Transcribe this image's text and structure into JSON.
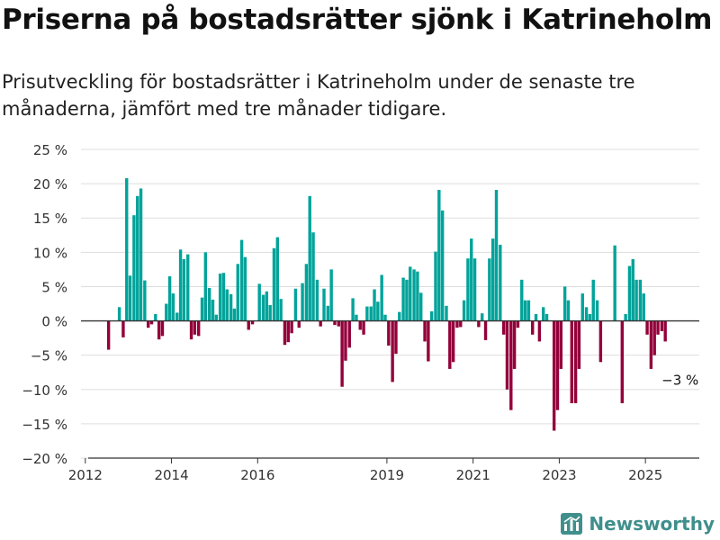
{
  "header": {
    "title": "Priserna på bostadsrätter sjönk i Katrineholm",
    "subtitle": "Prisutveckling för bostadsrätter i Katrineholm under de senaste tre månaderna, jämfört med tre månader tidigare."
  },
  "brand": {
    "name": "Newsworthy",
    "icon": "newsworthy-logo-icon"
  },
  "colors": {
    "positive": "#00a39a",
    "negative": "#93003a",
    "grid": "#dddddd",
    "axis": "#333333"
  },
  "chart_data": {
    "type": "bar",
    "title": "",
    "xlabel": "",
    "ylabel": "",
    "ylim": [
      -20,
      25
    ],
    "y_ticks": [
      25,
      20,
      15,
      10,
      5,
      0,
      -5,
      -10,
      -15,
      -20
    ],
    "y_tick_labels": [
      "25 %",
      "20 %",
      "15 %",
      "10 %",
      "5 %",
      "0 %",
      "−5 %",
      "−10 %",
      "−15 %",
      "−20 %"
    ],
    "x_ticks": [
      2012,
      2014,
      2016,
      2019,
      2021,
      2023,
      2025
    ],
    "x_range": [
      2011.9,
      2026.25
    ],
    "grid": true,
    "annotation": {
      "text": "−3 %",
      "x": 2025.46,
      "y": -3
    },
    "series": [
      {
        "x": [
          2012.54,
          2012.79,
          2012.88,
          2012.96,
          2013.04,
          2013.13,
          2013.21,
          2013.29,
          2013.38,
          2013.46,
          2013.54,
          2013.63,
          2013.71,
          2013.79,
          2013.88,
          2013.96,
          2014.04,
          2014.13,
          2014.21,
          2014.29,
          2014.38,
          2014.46,
          2014.54,
          2014.63,
          2014.71,
          2014.79,
          2014.88,
          2014.96,
          2015.04,
          2015.13,
          2015.21,
          2015.29,
          2015.38,
          2015.46,
          2015.54,
          2015.63,
          2015.71,
          2015.79,
          2015.88,
          2015.96,
          2016.04,
          2016.13,
          2016.21,
          2016.29,
          2016.38,
          2016.46,
          2016.54,
          2016.63,
          2016.71,
          2016.79,
          2016.88,
          2016.96,
          2017.04,
          2017.13,
          2017.21,
          2017.29,
          2017.38,
          2017.46,
          2017.54,
          2017.63,
          2017.71,
          2017.79,
          2017.88,
          2017.96,
          2018.04,
          2018.13,
          2018.21,
          2018.29,
          2018.38,
          2018.46,
          2018.54,
          2018.63,
          2018.71,
          2018.79,
          2018.88,
          2018.96,
          2019.04,
          2019.13,
          2019.21,
          2019.29,
          2019.38,
          2019.46,
          2019.54,
          2019.63,
          2019.71,
          2019.79,
          2019.88,
          2019.96,
          2020.04,
          2020.13,
          2020.21,
          2020.29,
          2020.38,
          2020.46,
          2020.54,
          2020.63,
          2020.71,
          2020.79,
          2020.88,
          2020.96,
          2021.04,
          2021.13,
          2021.21,
          2021.29,
          2021.38,
          2021.46,
          2021.54,
          2021.63,
          2021.71,
          2021.79,
          2021.88,
          2021.96,
          2022.04,
          2022.13,
          2022.21,
          2022.29,
          2022.38,
          2022.46,
          2022.54,
          2022.63,
          2022.71,
          2022.79,
          2022.88,
          2022.96,
          2023.04,
          2023.13,
          2023.21,
          2023.29,
          2023.38,
          2023.46,
          2023.54,
          2023.63,
          2023.71,
          2023.79,
          2023.88,
          2023.96,
          2024.04,
          2024.13,
          2024.21,
          2024.29,
          2024.38,
          2024.46,
          2024.54,
          2024.63,
          2024.71,
          2024.79,
          2024.88,
          2024.96,
          2025.04,
          2025.13,
          2025.21,
          2025.29,
          2025.38,
          2025.46
        ],
        "values": [
          -4.2,
          2.0,
          -2.4,
          20.8,
          6.6,
          15.4,
          18.2,
          19.3,
          5.9,
          -1.0,
          -0.5,
          1.0,
          -2.7,
          -2.2,
          2.5,
          6.5,
          4.0,
          1.2,
          10.4,
          9.0,
          9.7,
          -2.7,
          -2.0,
          -2.2,
          3.4,
          10.0,
          4.8,
          3.1,
          0.9,
          6.9,
          7.0,
          4.6,
          3.9,
          1.8,
          8.3,
          11.8,
          9.3,
          -1.3,
          -0.5,
          0.0,
          5.4,
          3.8,
          4.3,
          2.3,
          10.6,
          12.2,
          3.2,
          -3.5,
          -3.1,
          -1.8,
          4.7,
          -1.0,
          5.5,
          8.3,
          18.2,
          12.9,
          6.0,
          -0.8,
          4.7,
          2.2,
          7.5,
          -0.6,
          -0.8,
          -9.6,
          -5.8,
          -3.9,
          3.3,
          0.9,
          -1.3,
          -2.0,
          2.1,
          2.1,
          4.6,
          2.8,
          6.7,
          0.9,
          -3.6,
          -8.9,
          -4.8,
          1.3,
          6.3,
          6.0,
          7.9,
          7.5,
          7.2,
          4.1,
          -3.0,
          -5.9,
          1.4,
          10.1,
          19.1,
          16.1,
          2.2,
          -7.0,
          -6.0,
          -1.0,
          -0.9,
          3.0,
          9.1,
          12.0,
          9.1,
          -0.9,
          1.1,
          -2.8,
          9.1,
          12.0,
          19.1,
          11.1,
          -2.0,
          -10.0,
          -13.0,
          -7.0,
          -1.0,
          6.0,
          3.0,
          3.0,
          -2.0,
          1.0,
          -3.0,
          2.0,
          1.0,
          0.0,
          -16.0,
          -13.0,
          -7.0,
          5.0,
          3.0,
          -12.0,
          -12.0,
          -7.0,
          4.0,
          2.0,
          1.0,
          6.0,
          3.0,
          -6.0,
          0.0,
          0.0,
          0.0,
          11.0,
          0.0,
          -12.0,
          1.0,
          8.0,
          9.0,
          6.0,
          6.0,
          4.0,
          -2.0,
          -7.0,
          -5.0,
          -2.0,
          -1.5,
          -3.0
        ]
      }
    ]
  }
}
